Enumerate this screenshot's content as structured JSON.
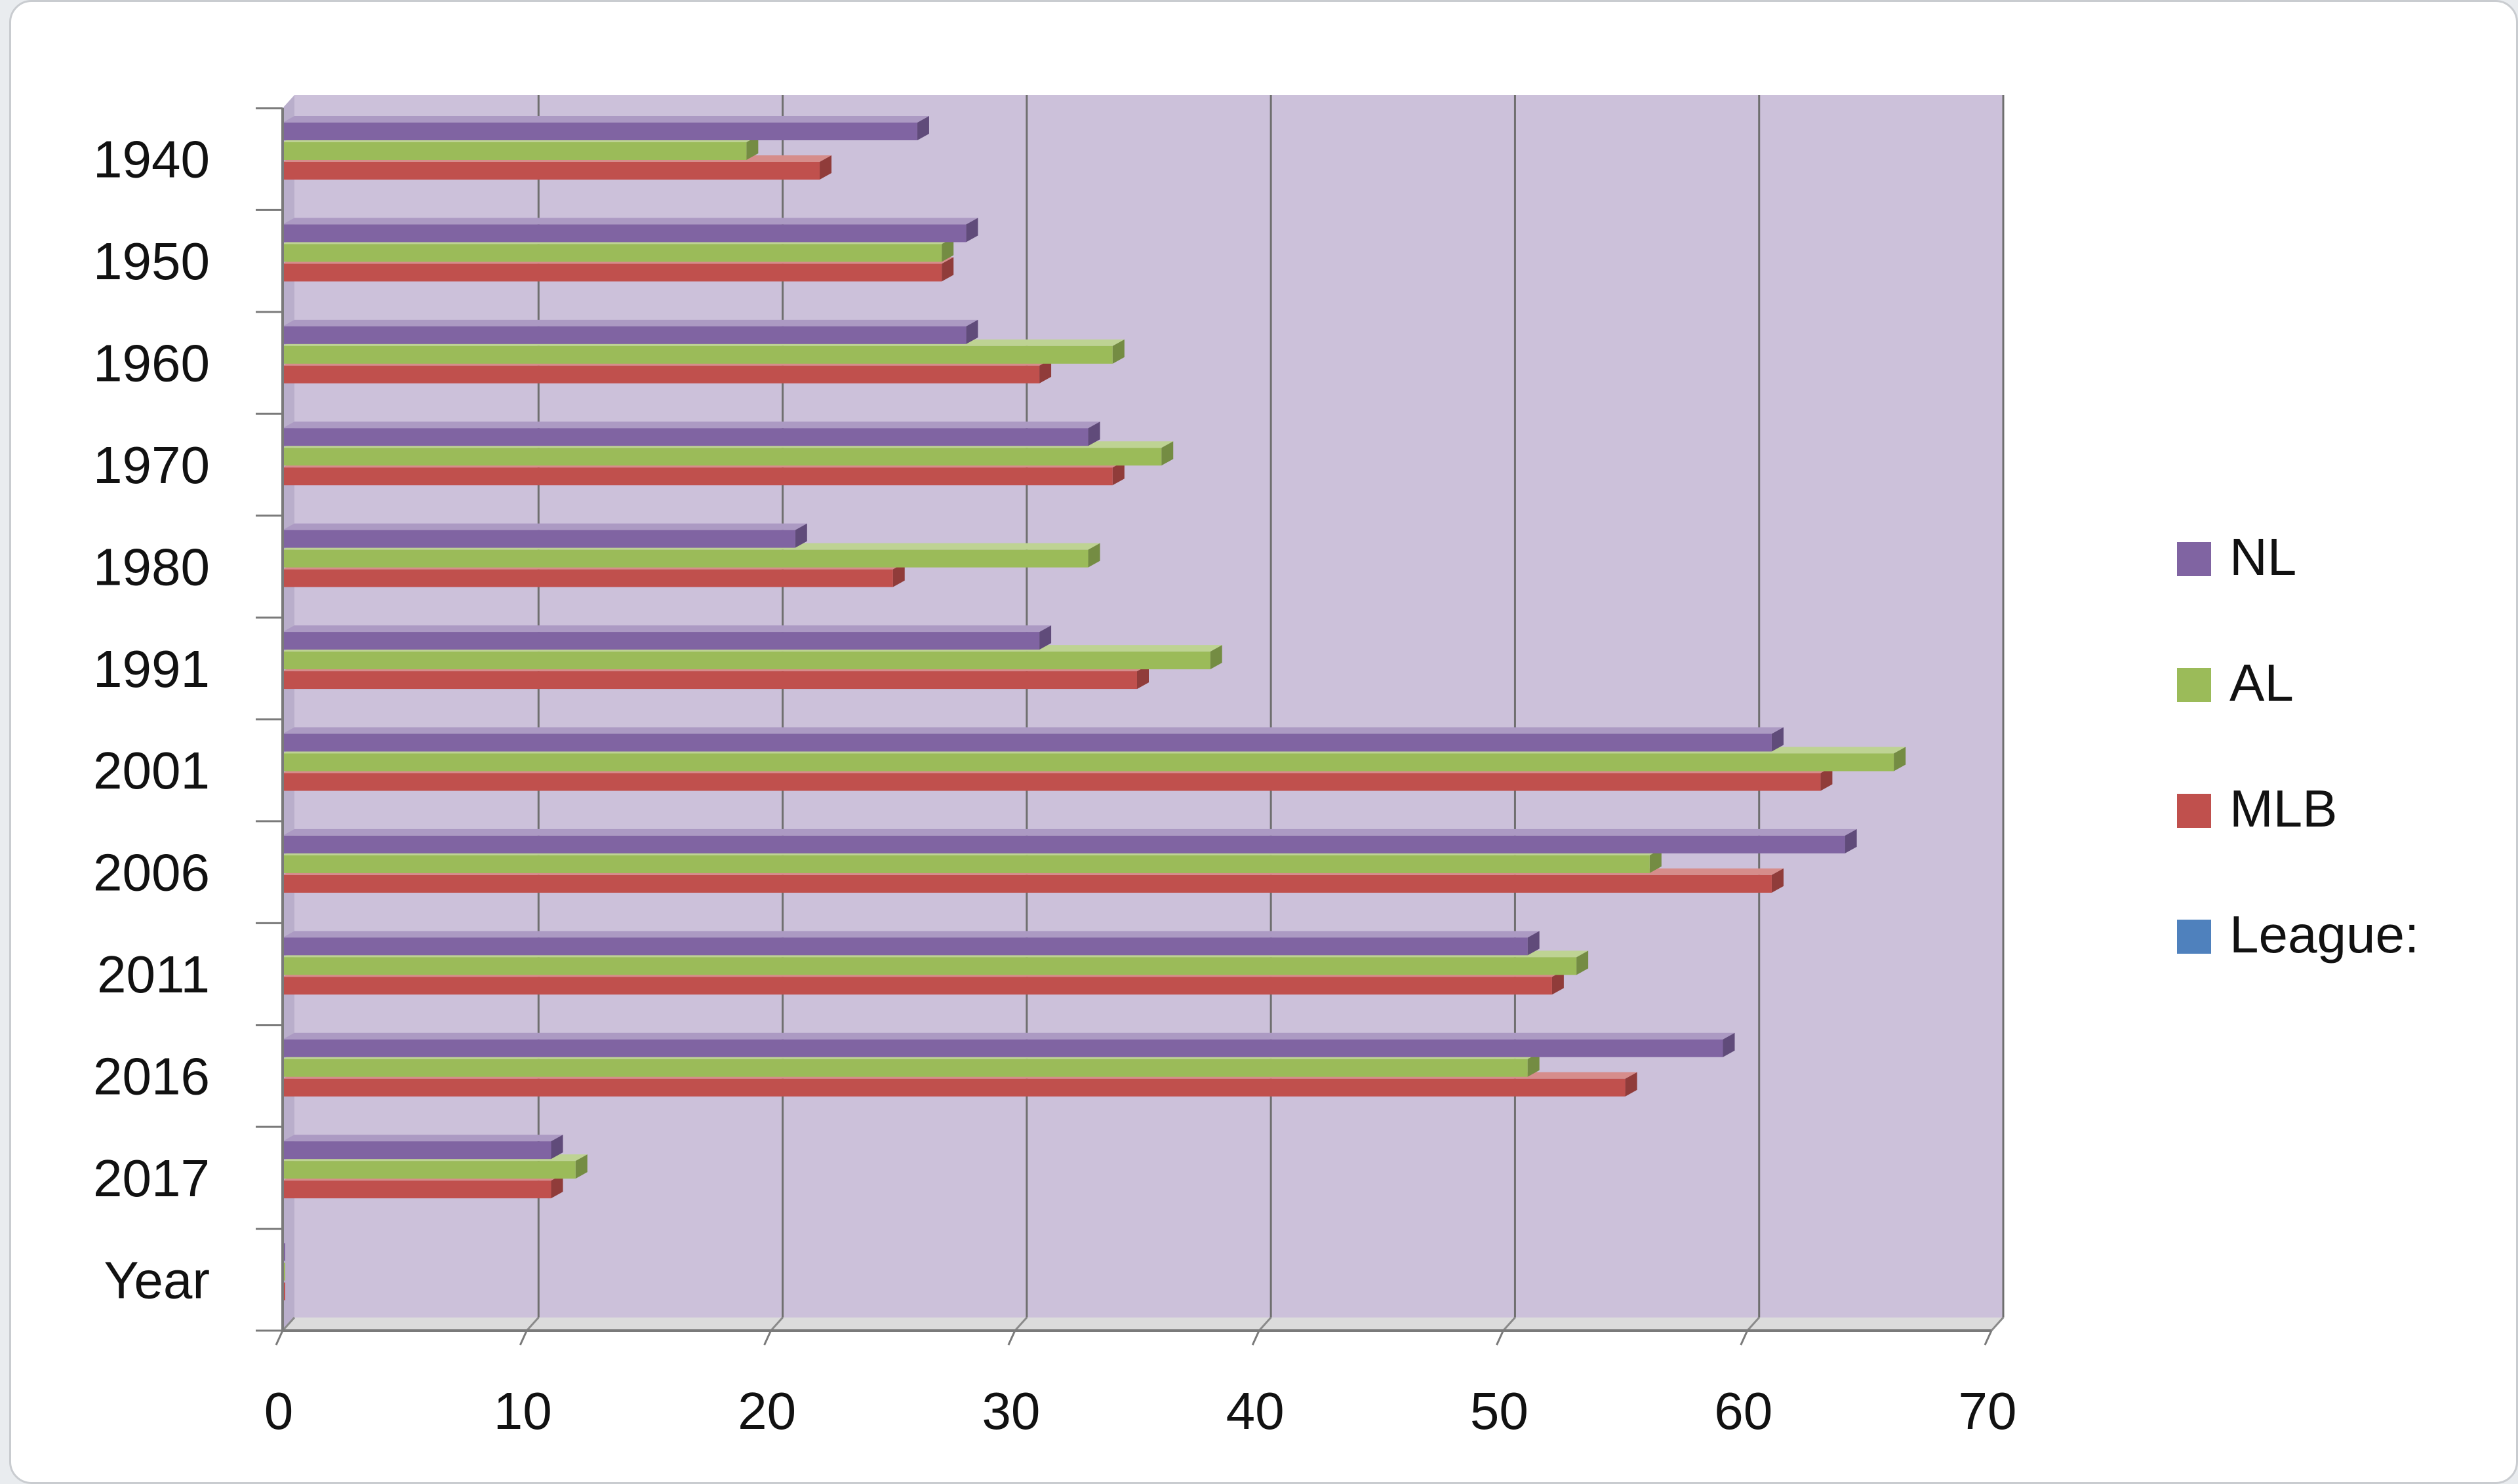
{
  "chart_data": {
    "type": "bar",
    "orientation": "horizontal",
    "style": "3d-clustered",
    "categories": [
      "1940",
      "1950",
      "1960",
      "1970",
      "1980",
      "1991",
      "2001",
      "2006",
      "2011",
      "2016",
      "2017",
      "Year"
    ],
    "series": [
      {
        "name": "NL",
        "color": "#8064a2",
        "values": [
          26,
          28,
          28,
          33,
          21,
          31,
          61,
          64,
          51,
          59,
          11,
          0
        ]
      },
      {
        "name": "AL",
        "color": "#9bbb59",
        "values": [
          19,
          27,
          34,
          36,
          33,
          38,
          66,
          56,
          53,
          51,
          12,
          0
        ]
      },
      {
        "name": "MLB",
        "color": "#c0504d",
        "values": [
          22,
          27,
          31,
          34,
          25,
          35,
          63,
          61,
          52,
          55,
          11,
          0
        ]
      },
      {
        "name": "League:",
        "color": "#4f81bd",
        "values": [
          0,
          0,
          0,
          0,
          0,
          0,
          0,
          0,
          0,
          0,
          0,
          0
        ]
      }
    ],
    "xlim": [
      0,
      70
    ],
    "x_ticks": [
      "0",
      "10",
      "20",
      "30",
      "40",
      "50",
      "60",
      "70"
    ],
    "grid": true,
    "legend": "right",
    "plot_background": "#ccc1da",
    "title": "",
    "xlabel": "",
    "ylabel": ""
  }
}
